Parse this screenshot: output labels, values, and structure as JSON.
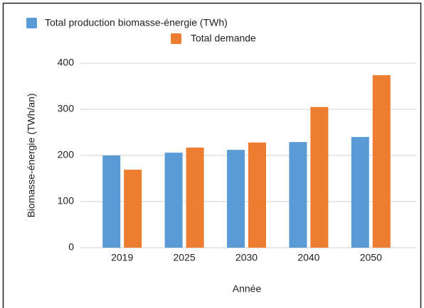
{
  "chart_data": {
    "type": "bar",
    "categories": [
      "2019",
      "2025",
      "2030",
      "2040",
      "2050"
    ],
    "series": [
      {
        "name": "Total production biomasse-énergie (TWh)",
        "color": "#5b9bd5",
        "values": [
          200,
          206,
          212,
          229,
          240
        ]
      },
      {
        "name": "Total demande",
        "color": "#ed7d31",
        "values": [
          169,
          217,
          228,
          305,
          374
        ]
      }
    ],
    "x_label": "Année",
    "y_label": "Biomasse-énergie (TWh/an)",
    "ylim": [
      0,
      400
    ],
    "yticks": [
      0,
      100,
      200,
      300,
      400
    ],
    "grid": true,
    "legend": "top"
  }
}
